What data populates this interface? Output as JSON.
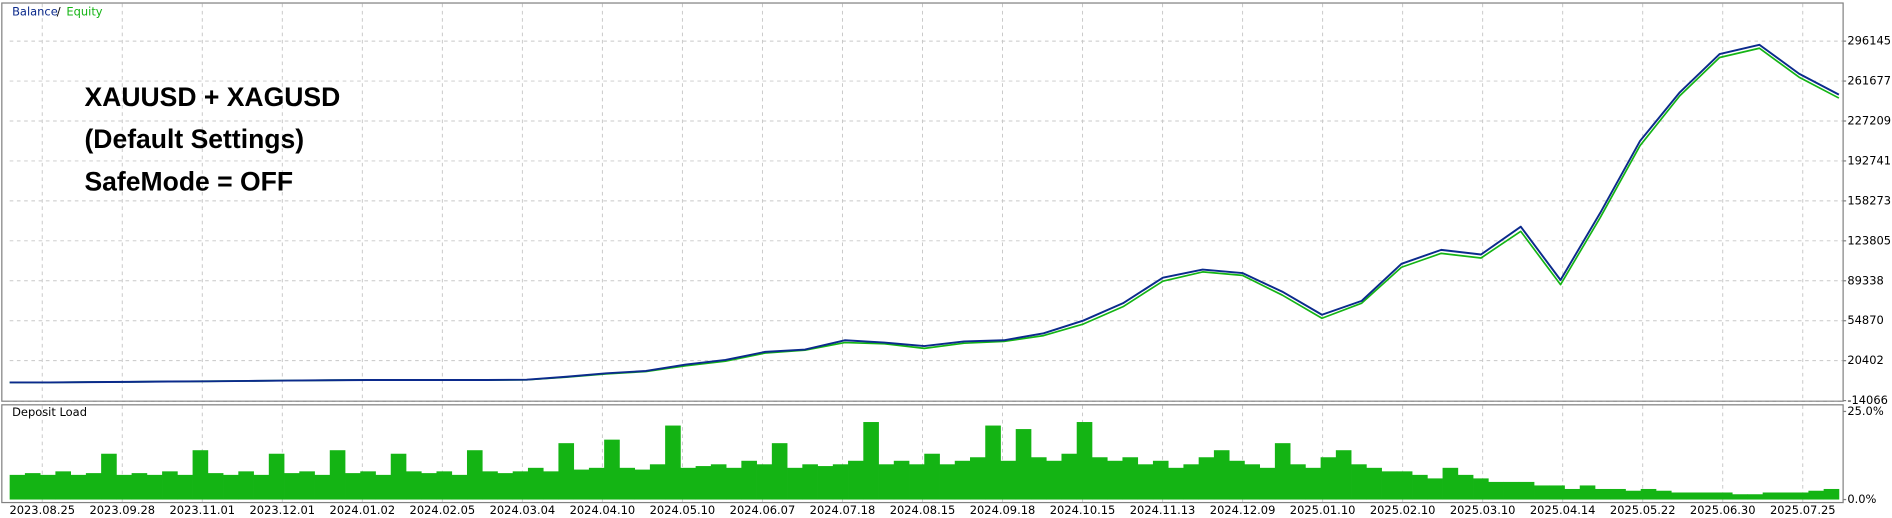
{
  "chart_data": [
    {
      "type": "line",
      "series": [
        {
          "name": "Balance",
          "color": "#0b2a8c",
          "values": [
            1600,
            1600,
            1900,
            2100,
            2400,
            2600,
            2900,
            3200,
            3500,
            3700,
            3700,
            3700,
            3700,
            4000,
            6500,
            9500,
            11500,
            17000,
            21000,
            28000,
            30000,
            38000,
            36000,
            33000,
            37000,
            38000,
            44000,
            55000,
            70000,
            92000,
            99000,
            96000,
            80000,
            60000,
            72000,
            104000,
            116000,
            112000,
            136000,
            90000,
            148000,
            210000,
            252000,
            285000,
            293000,
            268000,
            250000
          ]
        },
        {
          "name": "Equity",
          "color": "#14b414",
          "values": [
            1600,
            1600,
            1900,
            2100,
            2400,
            2600,
            2900,
            3200,
            3500,
            3700,
            3700,
            3700,
            3700,
            3900,
            6200,
            9000,
            11000,
            16000,
            20000,
            27000,
            29500,
            36000,
            35000,
            31000,
            35500,
            37000,
            42000,
            52000,
            67000,
            89000,
            97000,
            94000,
            77000,
            57000,
            70000,
            101000,
            113000,
            109000,
            132000,
            86000,
            144000,
            206000,
            249000,
            282000,
            290000,
            265000,
            247000
          ]
        }
      ],
      "legend_separator": "/",
      "annotations": [
        "XAUUSD + XAGUSD",
        "(Default Settings)",
        "SafeMode = OFF"
      ],
      "ylim": [
        -14066,
        328500
      ],
      "yticks": [
        -14066,
        20402,
        54870,
        89338,
        123805,
        158273,
        192741,
        227209,
        261677,
        296145
      ],
      "x_labels": [
        "2023.08.25",
        "2023.09.28",
        "2023.11.01",
        "2023.12.01",
        "2024.01.02",
        "2024.02.05",
        "2024.03.04",
        "2024.04.10",
        "2024.05.10",
        "2024.06.07",
        "2024.07.18",
        "2024.08.15",
        "2024.09.18",
        "2024.10.15",
        "2024.11.13",
        "2024.12.09",
        "2025.01.10",
        "2025.02.10",
        "2025.03.10",
        "2025.04.14",
        "2025.05.22",
        "2025.06.30",
        "2025.07.25"
      ],
      "grid": true
    },
    {
      "type": "bar",
      "title": "Deposit Load",
      "color": "#14b414",
      "values": [
        7,
        7.5,
        7,
        8,
        7,
        7.5,
        13,
        7,
        7.5,
        7,
        8,
        7,
        14,
        7.5,
        7,
        8,
        7,
        13,
        7.5,
        8,
        7,
        14,
        7.5,
        8,
        7,
        13,
        8,
        7.5,
        8,
        7,
        14,
        8,
        7.5,
        8,
        9,
        8,
        16,
        8.5,
        9,
        17,
        9,
        8.5,
        10,
        21,
        9,
        9.5,
        10,
        9,
        11,
        10,
        16,
        9,
        10,
        9.5,
        10,
        11,
        22,
        10,
        11,
        10,
        13,
        10,
        11,
        12,
        21,
        11,
        20,
        12,
        11,
        13,
        22,
        12,
        11,
        12,
        10,
        11,
        9,
        10,
        12,
        14,
        11,
        10,
        9,
        16,
        10,
        9,
        12,
        14,
        10,
        9,
        8,
        8,
        7,
        6,
        9,
        7,
        6,
        5,
        5,
        5,
        4,
        4,
        3,
        4,
        3,
        3,
        2.5,
        3,
        2.5,
        2,
        2,
        2,
        2,
        1.5,
        1.5,
        2,
        2,
        2,
        2.5,
        3
      ],
      "ylim": [
        0,
        25
      ],
      "yticks": [
        {
          "value": 0,
          "label": "0.0%"
        },
        {
          "value": 25,
          "label": "25.0%"
        }
      ]
    }
  ]
}
